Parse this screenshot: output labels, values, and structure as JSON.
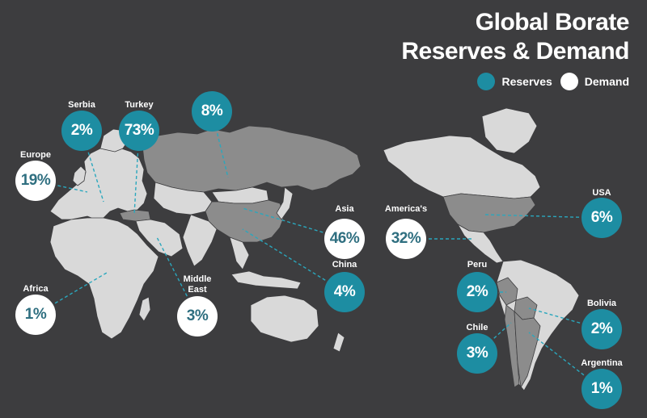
{
  "title": {
    "line1": "Global Borate",
    "line2": "Reserves & Demand"
  },
  "legend": [
    {
      "label": "Reserves",
      "color": "#1d8da2"
    },
    {
      "label": "Demand",
      "color": "#ffffff"
    }
  ],
  "colors": {
    "background": "#3d3d3f",
    "land": "#d9d9d9",
    "highlight": "#8c8c8c",
    "reserves": "#1d8da2",
    "demand": "#ffffff",
    "leader": "#2aa7bd"
  },
  "markers": [
    {
      "id": "serbia",
      "label": "Serbia",
      "value": "2%",
      "type": "reserves"
    },
    {
      "id": "turkey",
      "label": "Turkey",
      "value": "73%",
      "type": "reserves"
    },
    {
      "id": "russia",
      "label": "",
      "value": "8%",
      "type": "reserves"
    },
    {
      "id": "europe",
      "label": "Europe",
      "value": "19%",
      "type": "demand"
    },
    {
      "id": "asia",
      "label": "Asia",
      "value": "46%",
      "type": "demand"
    },
    {
      "id": "americas",
      "label": "America's",
      "value": "32%",
      "type": "demand"
    },
    {
      "id": "usa",
      "label": "USA",
      "value": "6%",
      "type": "reserves"
    },
    {
      "id": "china",
      "label": "China",
      "value": "4%",
      "type": "reserves"
    },
    {
      "id": "africa",
      "label": "Africa",
      "value": "1%",
      "type": "demand"
    },
    {
      "id": "middle-east",
      "label": "Middle\nEast",
      "value": "3%",
      "type": "demand"
    },
    {
      "id": "peru",
      "label": "Peru",
      "value": "2%",
      "type": "reserves"
    },
    {
      "id": "bolivia",
      "label": "Bolivia",
      "value": "2%",
      "type": "reserves"
    },
    {
      "id": "chile",
      "label": "Chile",
      "value": "3%",
      "type": "reserves"
    },
    {
      "id": "argentina",
      "label": "Argentina",
      "value": "1%",
      "type": "reserves"
    }
  ]
}
